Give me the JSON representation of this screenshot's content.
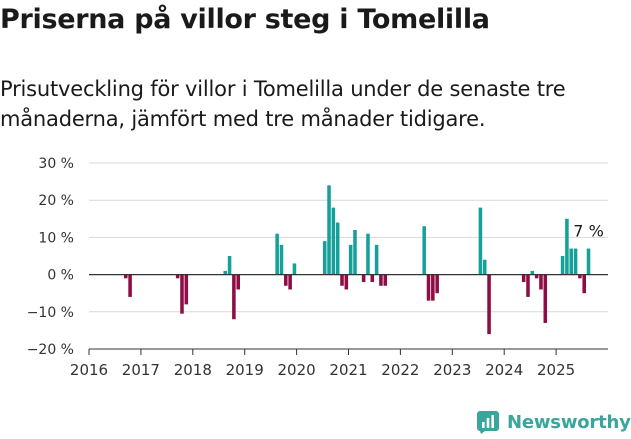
{
  "title": "Priserna på villor steg i Tomelilla",
  "subtitle": "Prisutveckling för villor i Tomelilla under de senaste tre månaderna, jämfört med tre månader tidigare.",
  "brand": {
    "name": "Newsworthy",
    "color": "#3aa59c",
    "icon": "newsworthy-chart-icon"
  },
  "colors": {
    "positive": "#16a09a",
    "negative": "#8e0d45",
    "axis": "#333333",
    "grid": "#d9d9d9"
  },
  "chart_data": {
    "type": "bar",
    "title": "",
    "xlabel": "",
    "ylabel": "",
    "ylim": [
      -20,
      30
    ],
    "xlim": [
      2016,
      2026
    ],
    "y_ticks": [
      30,
      20,
      10,
      0,
      -10,
      -20
    ],
    "y_tick_labels": [
      "30 %",
      "20 %",
      "10 %",
      "0 %",
      "−10 %",
      "−20 %"
    ],
    "x_ticks": [
      2016,
      2017,
      2018,
      2019,
      2020,
      2021,
      2022,
      2023,
      2024,
      2025
    ],
    "x_tick_labels": [
      "2016",
      "2017",
      "2018",
      "2019",
      "2020",
      "2021",
      "2022",
      "2023",
      "2024",
      "2025"
    ],
    "grid": true,
    "annotation": {
      "text": "7 %",
      "target": "last"
    },
    "series": [
      {
        "x": [
          "2016-09",
          "2016-10",
          "2017-09",
          "2017-10",
          "2017-11",
          "2018-08",
          "2018-09",
          "2018-10",
          "2018-11",
          "2019-08",
          "2019-09",
          "2019-10",
          "2019-11",
          "2019-12",
          "2020-07",
          "2020-08",
          "2020-09",
          "2020-10",
          "2020-11",
          "2020-12",
          "2021-01",
          "2021-02",
          "2021-04",
          "2021-05",
          "2021-06",
          "2021-07",
          "2021-08",
          "2021-09",
          "2021-10",
          "2022-06",
          "2022-07",
          "2022-08",
          "2022-09",
          "2023-07",
          "2023-08",
          "2023-09",
          "2024-05",
          "2024-06",
          "2024-07",
          "2024-08",
          "2024-09",
          "2024-10",
          "2025-02",
          "2025-03",
          "2025-04",
          "2025-05",
          "2025-06",
          "2025-07",
          "2025-08"
        ],
        "values": [
          -1,
          -6,
          -1,
          -10.5,
          -8,
          1,
          5,
          -12,
          -4,
          11,
          8,
          -3,
          -4,
          3,
          9,
          24,
          18,
          14,
          -3,
          -4,
          8,
          12,
          -2,
          11,
          -2,
          8,
          -3,
          -3,
          0,
          13,
          -7,
          -7,
          -5,
          18,
          4,
          -16,
          -2,
          -6,
          1,
          -1,
          -4,
          -13,
          5,
          15,
          7,
          7,
          -1,
          -5,
          7
        ]
      }
    ]
  }
}
